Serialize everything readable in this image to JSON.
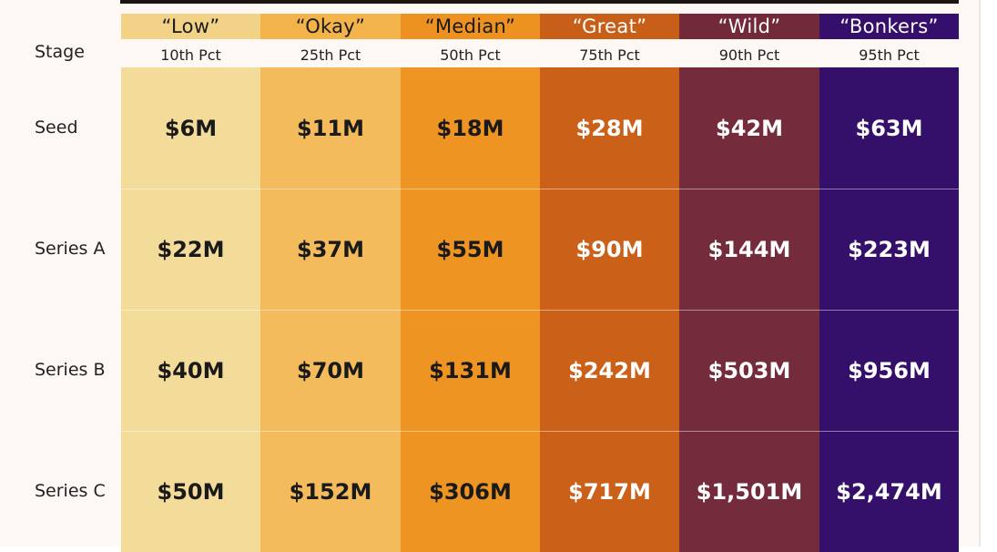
{
  "chart_data": {
    "type": "table",
    "row_header": "Stage",
    "columns": [
      {
        "label": "“Low”",
        "percentile": "10th Pct",
        "color": "#f3db9a",
        "head_color": "#f1d287",
        "text_color": "#1a1a1a"
      },
      {
        "label": "“Okay”",
        "percentile": "25th Pct",
        "color": "#f3bb5b",
        "head_color": "#f1b34a",
        "text_color": "#1a1a1a"
      },
      {
        "label": "“Median”",
        "percentile": "50th Pct",
        "color": "#ee9422",
        "head_color": "#ed9220",
        "text_color": "#1a1a1a"
      },
      {
        "label": "“Great”",
        "percentile": "75th Pct",
        "color": "#cb6119",
        "head_color": "#c85f18",
        "text_color": "#ffffff"
      },
      {
        "label": "“Wild”",
        "percentile": "90th Pct",
        "color": "#742b3c",
        "head_color": "#722a3b",
        "text_color": "#ffffff"
      },
      {
        "label": "“Bonkers”",
        "percentile": "95th Pct",
        "color": "#35106a",
        "head_color": "#350f6b",
        "text_color": "#ffffff"
      }
    ],
    "rows": [
      {
        "stage": "Seed",
        "values": [
          "$6M",
          "$11M",
          "$18M",
          "$28M",
          "$42M",
          "$63M"
        ]
      },
      {
        "stage": "Series A",
        "values": [
          "$22M",
          "$37M",
          "$55M",
          "$90M",
          "$144M",
          "$223M"
        ]
      },
      {
        "stage": "Series B",
        "values": [
          "$40M",
          "$70M",
          "$131M",
          "$242M",
          "$503M",
          "$956M"
        ]
      },
      {
        "stage": "Series C",
        "values": [
          "$50M",
          "$152M",
          "$306M",
          "$717M",
          "$1,501M",
          "$2,474M"
        ]
      }
    ],
    "units": "USD millions"
  }
}
